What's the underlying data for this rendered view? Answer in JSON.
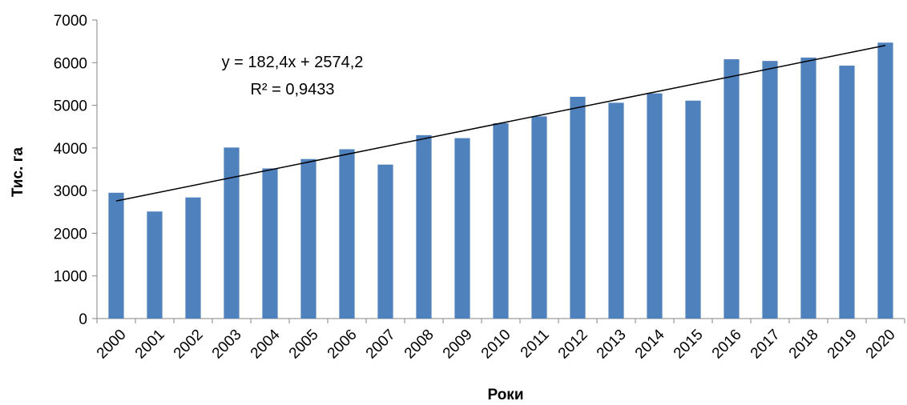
{
  "chart_data": {
    "type": "bar",
    "categories": [
      "2000",
      "2001",
      "2002",
      "2003",
      "2004",
      "2005",
      "2006",
      "2007",
      "2008",
      "2009",
      "2010",
      "2011",
      "2012",
      "2013",
      "2014",
      "2015",
      "2016",
      "2017",
      "2018",
      "2019",
      "2020"
    ],
    "values": [
      2950,
      2510,
      2840,
      4010,
      3520,
      3740,
      3970,
      3610,
      4300,
      4230,
      4580,
      4740,
      5200,
      5060,
      5280,
      5110,
      6080,
      6040,
      6120,
      5930,
      6470
    ],
    "xlabel": "Роки",
    "ylabel": "Тис. га",
    "ylim": [
      0,
      7000
    ],
    "yticks": [
      "0",
      "1000",
      "2000",
      "3000",
      "4000",
      "5000",
      "6000",
      "7000"
    ],
    "bar_color": "#4f81bd",
    "trendline": {
      "type": "linear",
      "equation": "y = 182,4x + 2574,2",
      "r_squared": "R² = 0,9433",
      "slope": 182.4,
      "intercept": 2574.2,
      "color": "#000000"
    },
    "grid": false,
    "legend": "none"
  }
}
